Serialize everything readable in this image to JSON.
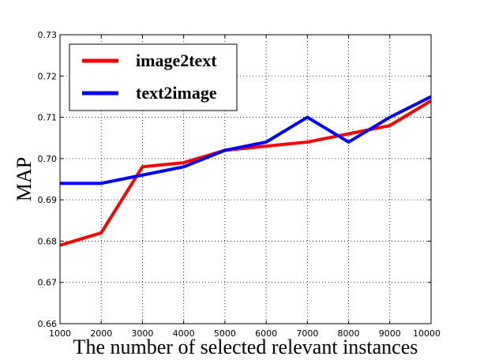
{
  "chart_data": {
    "type": "line",
    "xlabel": "The number of selected relevant instances",
    "ylabel": "MAP",
    "x": [
      1000,
      2000,
      3000,
      4000,
      5000,
      6000,
      7000,
      8000,
      9000,
      10000
    ],
    "x_tick_labels": [
      "1000",
      "2000",
      "3000",
      "4000",
      "5000",
      "6000",
      "7000",
      "8000",
      "9000",
      "10000"
    ],
    "y_tick_labels": [
      "0.66",
      "0.67",
      "0.68",
      "0.69",
      "0.70",
      "0.71",
      "0.72",
      "0.73"
    ],
    "y_ticks": [
      0.66,
      0.67,
      0.68,
      0.69,
      0.7,
      0.71,
      0.72,
      0.73
    ],
    "xlim": [
      1000,
      10000
    ],
    "ylim": [
      0.66,
      0.73
    ],
    "grid": true,
    "grid_style": "dotted",
    "legend_position": "top-left",
    "series": [
      {
        "name": "image2text",
        "color": "#ff0000",
        "values": [
          0.679,
          0.682,
          0.698,
          0.699,
          0.702,
          0.703,
          0.704,
          0.706,
          0.708,
          0.714
        ]
      },
      {
        "name": "text2image",
        "color": "#0000ff",
        "values": [
          0.694,
          0.694,
          0.696,
          0.698,
          0.702,
          0.704,
          0.71,
          0.704,
          0.71,
          0.715
        ]
      }
    ]
  }
}
